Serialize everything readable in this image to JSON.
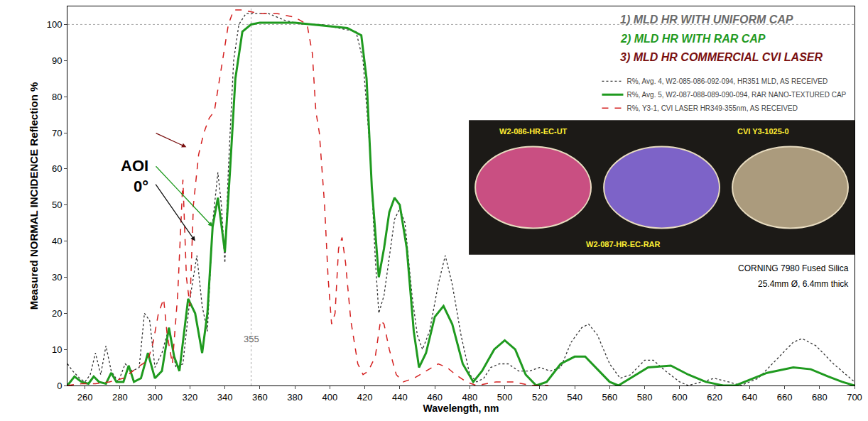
{
  "chart_data": {
    "type": "line",
    "headings": [
      {
        "text": "1) MLD HR WITH UNIFORM CAP",
        "color": "#6b6b6b"
      },
      {
        "text": "2) MLD HR WITH RAR CAP",
        "color": "#1f9a1f"
      },
      {
        "text": "3) MLD HR COMMERCIAL CVI LASER",
        "color": "#7a1010"
      }
    ],
    "x_label": "Wavelength, nm",
    "y_label": "Measured NORMAL INCIDENCE Reflection %",
    "xlim": [
      250,
      700
    ],
    "ylim": [
      0,
      105
    ],
    "xticks": [
      260,
      280,
      300,
      320,
      340,
      360,
      380,
      400,
      420,
      440,
      460,
      480,
      500,
      520,
      540,
      560,
      580,
      600,
      620,
      640,
      660,
      680,
      700
    ],
    "yticks": [
      0,
      10,
      20,
      30,
      40,
      50,
      60,
      70,
      80,
      90,
      100
    ],
    "grid": false,
    "legend": "top right",
    "series": [
      {
        "name": "R%, Avg. 4, W2-085-086-092-094, HR351 MLD, AS RECEIVED",
        "color": "#333333",
        "line_style": "dotted",
        "x": [
          250,
          253,
          257,
          260,
          263,
          266,
          269,
          272,
          275,
          279,
          283,
          287,
          291,
          294,
          297,
          300,
          304,
          308,
          312,
          316,
          320,
          324,
          327,
          330,
          333,
          336,
          338,
          340,
          342,
          345,
          348,
          352,
          358,
          365,
          375,
          385,
          395,
          405,
          415,
          419,
          423,
          426,
          428,
          431,
          434,
          437,
          440,
          443,
          447,
          450,
          453,
          457,
          462,
          466,
          470,
          475,
          480,
          484,
          488,
          492,
          497,
          502,
          508,
          514,
          520,
          526,
          532,
          538,
          544,
          548,
          553,
          560,
          566,
          572,
          580,
          585,
          592,
          600,
          605,
          612,
          620,
          628,
          635,
          645,
          655,
          665,
          670,
          678,
          688,
          700
        ],
        "values": [
          6,
          4,
          2,
          1,
          3,
          9,
          3,
          11,
          4,
          1,
          6,
          4,
          5,
          20,
          18,
          5,
          9,
          16,
          5,
          6,
          24,
          36,
          22,
          15,
          45,
          59,
          50,
          34,
          60,
          90,
          100,
          103,
          103,
          103,
          101,
          100,
          100,
          99,
          98,
          90,
          65,
          35,
          20,
          25,
          35,
          46,
          49,
          45,
          25,
          14,
          10,
          15,
          28,
          36,
          28,
          14,
          3,
          1,
          2,
          5,
          6,
          6,
          4,
          4,
          5,
          4,
          5,
          12,
          16,
          17,
          14,
          6,
          2,
          3,
          7,
          7,
          4,
          1,
          0,
          1,
          2,
          1,
          0,
          2,
          7,
          12,
          13,
          11,
          6,
          1
        ]
      },
      {
        "name": "R%, Avg. 5, W2-087-088-089-090-094, RAR NANO-TEXTURED CAP",
        "color": "#1f9a1f",
        "line_style": "solid",
        "x": [
          250,
          254,
          258,
          262,
          265,
          268,
          272,
          275,
          278,
          282,
          285,
          288,
          292,
          296,
          300,
          304,
          308,
          311,
          314,
          319,
          323,
          327,
          330,
          333,
          336,
          338,
          340,
          343,
          346,
          350,
          355,
          360,
          370,
          380,
          390,
          400,
          410,
          418,
          421,
          424,
          428,
          431,
          434,
          437,
          440,
          444,
          448,
          451,
          455,
          460,
          465,
          470,
          476,
          482,
          487,
          494,
          500,
          506,
          512,
          518,
          524,
          532,
          540,
          546,
          552,
          560,
          565,
          572,
          582,
          595,
          605,
          615,
          625,
          632,
          640,
          650,
          665,
          675,
          685,
          693,
          700
        ],
        "values": [
          0,
          2.5,
          1,
          0.5,
          2.5,
          1,
          0.5,
          3.5,
          1,
          1,
          5.5,
          1,
          2,
          9,
          2,
          4,
          16,
          8,
          4,
          24,
          20,
          9,
          20,
          44,
          52,
          44,
          37,
          60,
          85,
          98,
          100,
          100.5,
          100.5,
          100.5,
          100,
          99.5,
          99,
          97,
          85,
          55,
          30,
          38,
          48,
          52,
          50,
          38,
          15,
          5,
          9,
          19,
          22,
          17,
          6,
          1,
          4,
          10,
          12.5,
          10,
          3,
          0,
          1,
          6,
          8,
          8,
          5,
          1,
          0,
          2,
          5,
          5.5,
          3,
          1,
          0,
          0,
          1.5,
          3.5,
          5,
          4.5,
          2.5,
          1,
          0
        ]
      },
      {
        "name": "R%, Y3-1, CVI LASER HR349-355nm, AS RECEIVED",
        "color": "#d42020",
        "line_style": "dashed",
        "x": [
          250,
          258,
          266,
          274,
          282,
          290,
          296,
          299,
          302,
          305,
          307,
          310,
          313,
          316,
          318,
          320,
          322,
          325,
          328,
          331,
          334,
          337,
          340,
          342,
          345,
          350,
          360,
          370,
          380,
          387,
          390,
          392,
          394,
          397,
          399,
          401,
          403,
          405,
          407,
          409,
          412,
          416,
          419,
          422,
          426,
          429,
          431,
          434,
          438,
          442,
          448,
          455,
          462,
          467,
          472,
          478,
          484,
          495,
          505,
          515,
          525
        ],
        "values": [
          0,
          0.5,
          0.5,
          1,
          2,
          5,
          7,
          12,
          20,
          24,
          14,
          6,
          25,
          57,
          30,
          22,
          50,
          64,
          70,
          74,
          76,
          85,
          94,
          100,
          104,
          104,
          103,
          103,
          102,
          100,
          92,
          76,
          70,
          50,
          30,
          17,
          20,
          38,
          41,
          34,
          18,
          6,
          3,
          4,
          8,
          18,
          17,
          10,
          3,
          1,
          2,
          4,
          6,
          5,
          3,
          1,
          0,
          1,
          1,
          0,
          0
        ]
      }
    ],
    "reference_lines": [
      {
        "axis": "x",
        "value": 355,
        "label": "355"
      },
      {
        "axis": "y",
        "value": 100
      }
    ],
    "annotations": [
      {
        "lines": [
          "AOI",
          "0°"
        ],
        "x": 297,
        "y": 58,
        "arrows": [
          {
            "from": [
              300,
              70
            ],
            "to": [
              318,
              66
            ],
            "color": "#7a1010"
          },
          {
            "from": [
              300,
              61
            ],
            "to": [
              333,
              44
            ],
            "color": "#1f9a1f"
          },
          {
            "from": [
              300,
              56
            ],
            "to": [
              323,
              40
            ],
            "color": "#111111"
          }
        ]
      }
    ],
    "inset": {
      "labels": [
        "W2-086-HR-EC-UT",
        "W2-087-HR-EC-RAR",
        "CVI Y3-1025-0"
      ],
      "caption": [
        "CORNING 7980 Fused Silica",
        "25.4mm Ø, 6.4mm thick"
      ]
    }
  }
}
